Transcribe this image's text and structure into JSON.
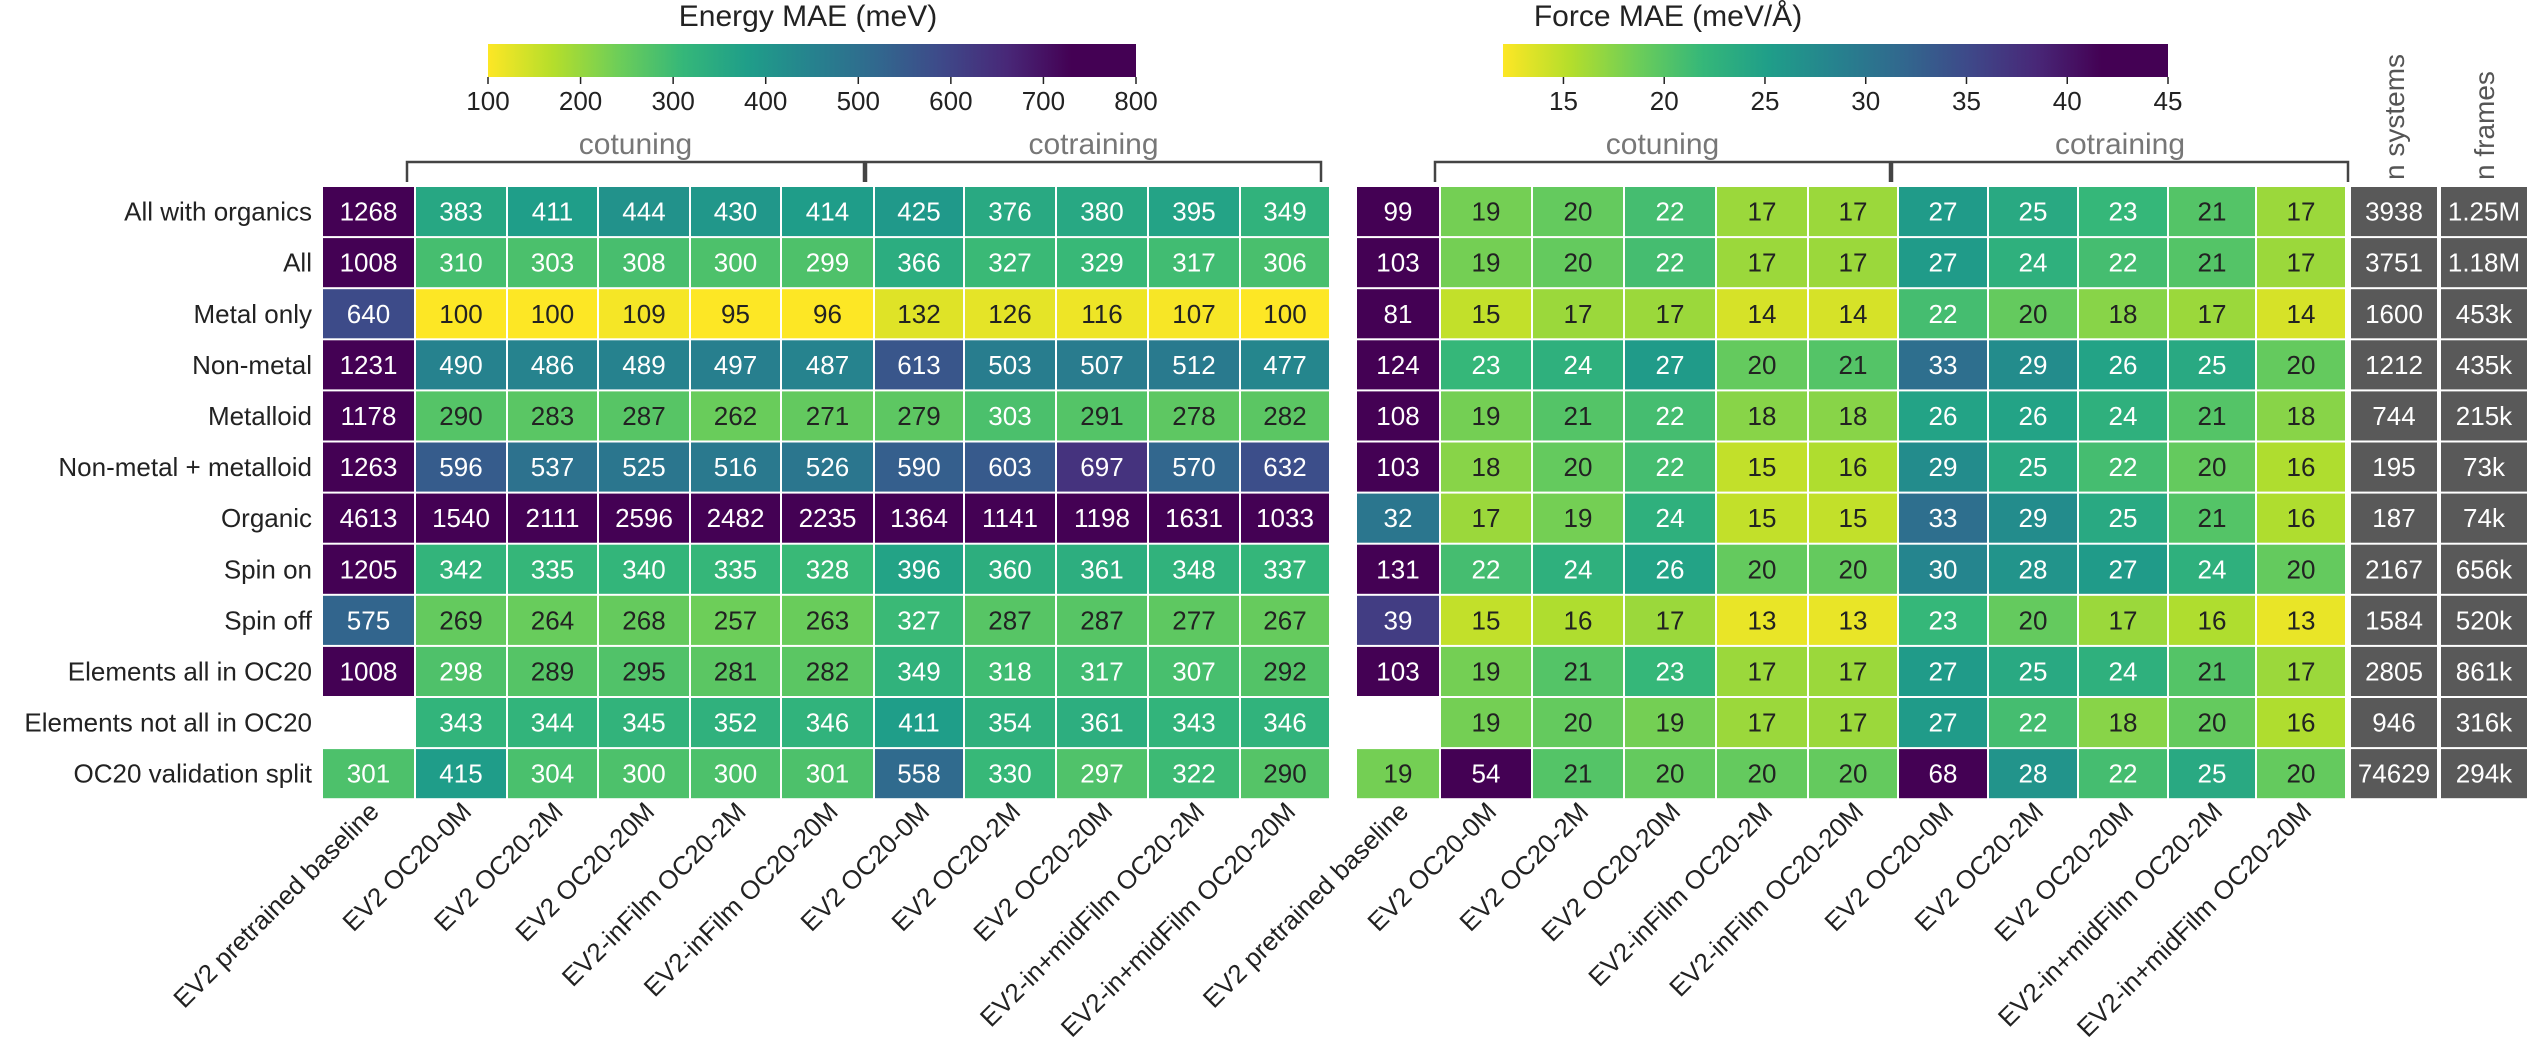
{
  "chart_data": {
    "type": "heatmap",
    "rows": [
      "All with organics",
      "All",
      "Metal only",
      "Non-metal",
      "Metalloid",
      "Non-metal + metalloid",
      "Organic",
      "Spin on",
      "Spin off",
      "Elements all in OC20",
      "Elements not all in OC20",
      "OC20 validation split"
    ],
    "group_labels": [
      "cotuning",
      "cotraining"
    ],
    "energy": {
      "title": "Energy MAE (meV)",
      "colorbar": {
        "min": 100,
        "max": 800,
        "ticks": [
          "100",
          "200",
          "300",
          "400",
          "500",
          "600",
          "700",
          "800"
        ]
      },
      "columns": [
        "EV2 pretrained baseline",
        "EV2 OC20-0M",
        "EV2 OC20-2M",
        "EV2 OC20-20M",
        "EV2-inFilm OC20-2M",
        "EV2-inFilm OC20-20M",
        "EV2 OC20-0M",
        "EV2 OC20-2M",
        "EV2 OC20-20M",
        "EV2-in+midFilm OC20-2M",
        "EV2-in+midFilm OC20-20M"
      ],
      "values": [
        [
          1268,
          383,
          411,
          444,
          430,
          414,
          425,
          376,
          380,
          395,
          349
        ],
        [
          1008,
          310,
          303,
          308,
          300,
          299,
          366,
          327,
          329,
          317,
          306
        ],
        [
          640,
          100,
          100,
          109,
          95,
          96,
          132,
          126,
          116,
          107,
          100
        ],
        [
          1231,
          490,
          486,
          489,
          497,
          487,
          613,
          503,
          507,
          512,
          477
        ],
        [
          1178,
          290,
          283,
          287,
          262,
          271,
          279,
          303,
          291,
          278,
          282
        ],
        [
          1263,
          596,
          537,
          525,
          516,
          526,
          590,
          603,
          697,
          570,
          632
        ],
        [
          4613,
          1540,
          2111,
          2596,
          2482,
          2235,
          1364,
          1141,
          1198,
          1631,
          1033
        ],
        [
          1205,
          342,
          335,
          340,
          335,
          328,
          396,
          360,
          361,
          348,
          337
        ],
        [
          575,
          269,
          264,
          268,
          257,
          263,
          327,
          287,
          287,
          277,
          267
        ],
        [
          1008,
          298,
          289,
          295,
          281,
          282,
          349,
          318,
          317,
          307,
          292
        ],
        [
          null,
          343,
          344,
          345,
          352,
          346,
          411,
          354,
          361,
          343,
          346
        ],
        [
          301,
          415,
          304,
          300,
          300,
          301,
          558,
          330,
          297,
          322,
          290
        ]
      ]
    },
    "force": {
      "title": "Force MAE (meV/Å)",
      "colorbar": {
        "min": 12,
        "max": 45,
        "ticks": [
          "15",
          "20",
          "25",
          "30",
          "35",
          "40",
          "45"
        ]
      },
      "columns": [
        "EV2 pretrained baseline",
        "EV2 OC20-0M",
        "EV2 OC20-2M",
        "EV2 OC20-20M",
        "EV2-inFilm OC20-2M",
        "EV2-inFilm OC20-20M",
        "EV2 OC20-0M",
        "EV2 OC20-2M",
        "EV2 OC20-20M",
        "EV2-in+midFilm OC20-2M",
        "EV2-in+midFilm OC20-20M"
      ],
      "values": [
        [
          99,
          19,
          20,
          22,
          17,
          17,
          27,
          25,
          23,
          21,
          17
        ],
        [
          103,
          19,
          20,
          22,
          17,
          17,
          27,
          24,
          22,
          21,
          17
        ],
        [
          81,
          15,
          17,
          17,
          14,
          14,
          22,
          20,
          18,
          17,
          14
        ],
        [
          124,
          23,
          24,
          27,
          20,
          21,
          33,
          29,
          26,
          25,
          20
        ],
        [
          108,
          19,
          21,
          22,
          18,
          18,
          26,
          26,
          24,
          21,
          18
        ],
        [
          103,
          18,
          20,
          22,
          15,
          16,
          29,
          25,
          22,
          20,
          16
        ],
        [
          32,
          17,
          19,
          24,
          15,
          15,
          33,
          29,
          25,
          21,
          16
        ],
        [
          131,
          22,
          24,
          26,
          20,
          20,
          30,
          28,
          27,
          24,
          20
        ],
        [
          39,
          15,
          16,
          17,
          13,
          13,
          23,
          20,
          17,
          16,
          13
        ],
        [
          103,
          19,
          21,
          23,
          17,
          17,
          27,
          25,
          24,
          21,
          17
        ],
        [
          null,
          19,
          20,
          19,
          17,
          17,
          27,
          22,
          18,
          20,
          16
        ],
        [
          19,
          54,
          21,
          20,
          20,
          20,
          68,
          28,
          22,
          25,
          20
        ]
      ]
    },
    "counts": {
      "columns": [
        "n systems",
        "n frames"
      ],
      "values": [
        [
          "3938",
          "1.25M"
        ],
        [
          "3751",
          "1.18M"
        ],
        [
          "1600",
          "453k"
        ],
        [
          "1212",
          "435k"
        ],
        [
          "744",
          "215k"
        ],
        [
          "195",
          "73k"
        ],
        [
          "187",
          "74k"
        ],
        [
          "2167",
          "656k"
        ],
        [
          "1584",
          "520k"
        ],
        [
          "2805",
          "861k"
        ],
        [
          "946",
          "316k"
        ],
        [
          "74629",
          "294k"
        ]
      ],
      "color": "#595959"
    },
    "colormap": "viridis-reversed"
  }
}
